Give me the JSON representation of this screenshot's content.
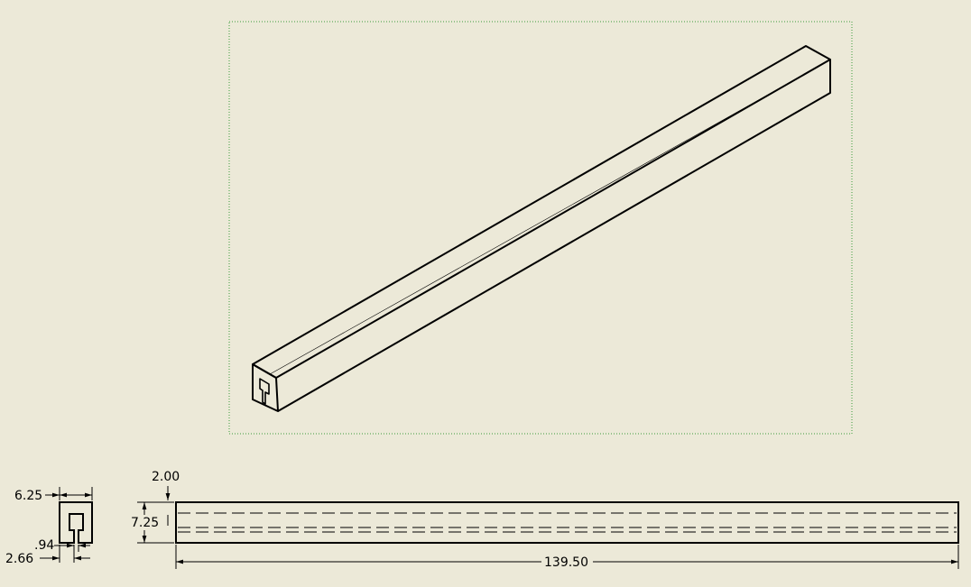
{
  "sheet": {
    "background": "#ece9d8",
    "line_color": "#000000",
    "frame_color": "#2e8b2e"
  },
  "views": {
    "iso": {
      "kind": "isometric-view",
      "selected": true
    },
    "end": {
      "kind": "end-view"
    },
    "front": {
      "kind": "front-view",
      "hidden_lines": true
    }
  },
  "dimensions": {
    "end_width": "6.25",
    "end_slot": ".94",
    "end_offset": "2.66",
    "front_top": "2.00",
    "front_height": "7.25",
    "front_length": "139.50"
  }
}
